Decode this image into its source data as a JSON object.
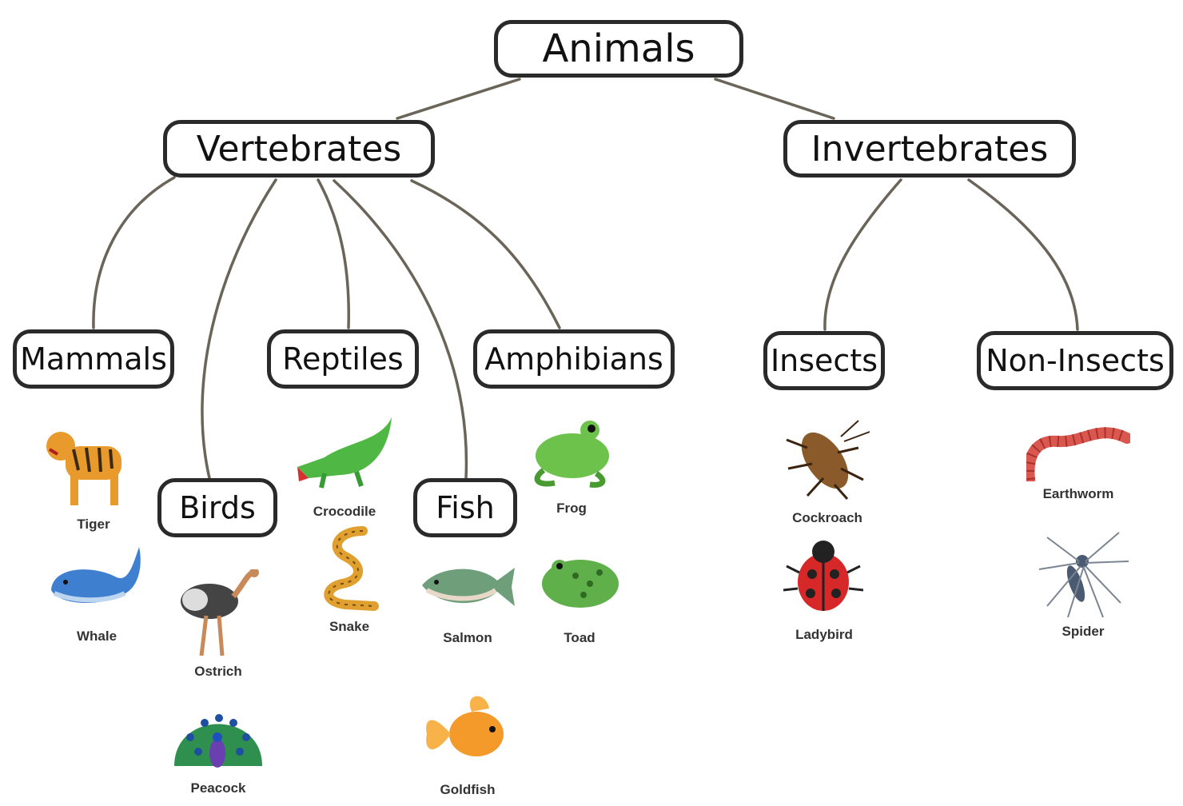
{
  "diagram": {
    "root": {
      "label": "Animals"
    },
    "groups": [
      {
        "id": "vertebrates",
        "label": "Vertebrates"
      },
      {
        "id": "invertebrates",
        "label": "Invertebrates"
      }
    ],
    "classes": [
      {
        "id": "mammals",
        "label": "Mammals",
        "parent": "vertebrates",
        "animals": [
          "Tiger",
          "Whale"
        ]
      },
      {
        "id": "birds",
        "label": "Birds",
        "parent": "vertebrates",
        "animals": [
          "Ostrich",
          "Peacock"
        ]
      },
      {
        "id": "reptiles",
        "label": "Reptiles",
        "parent": "vertebrates",
        "animals": [
          "Crocodile",
          "Snake"
        ]
      },
      {
        "id": "fish",
        "label": "Fish",
        "parent": "vertebrates",
        "animals": [
          "Salmon",
          "Goldfish"
        ]
      },
      {
        "id": "amphibians",
        "label": "Amphibians",
        "parent": "vertebrates",
        "animals": [
          "Frog",
          "Toad"
        ]
      },
      {
        "id": "insects",
        "label": "Insects",
        "parent": "invertebrates",
        "animals": [
          "Cockroach",
          "Ladybird"
        ]
      },
      {
        "id": "non_insects",
        "label": "Non-Insects",
        "parent": "invertebrates",
        "animals": [
          "Earthworm",
          "Spider"
        ]
      }
    ]
  },
  "colors": {
    "line": "#6b6458",
    "node_border": "#2a2a2a",
    "tiger": "#e89a2c",
    "whale": "#3f7fd0",
    "ostrich": "#444444",
    "peacock": "#2f8f4f",
    "crocodile": "#4fb845",
    "snake": "#e0a030",
    "salmon": "#6f9f7a",
    "goldfish": "#f39a2a",
    "frog": "#6cc24a",
    "toad": "#5fb04a",
    "cockroach": "#8a5a2a",
    "ladybird": "#d62828",
    "earthworm": "#d9574e",
    "spider": "#7a8592"
  }
}
